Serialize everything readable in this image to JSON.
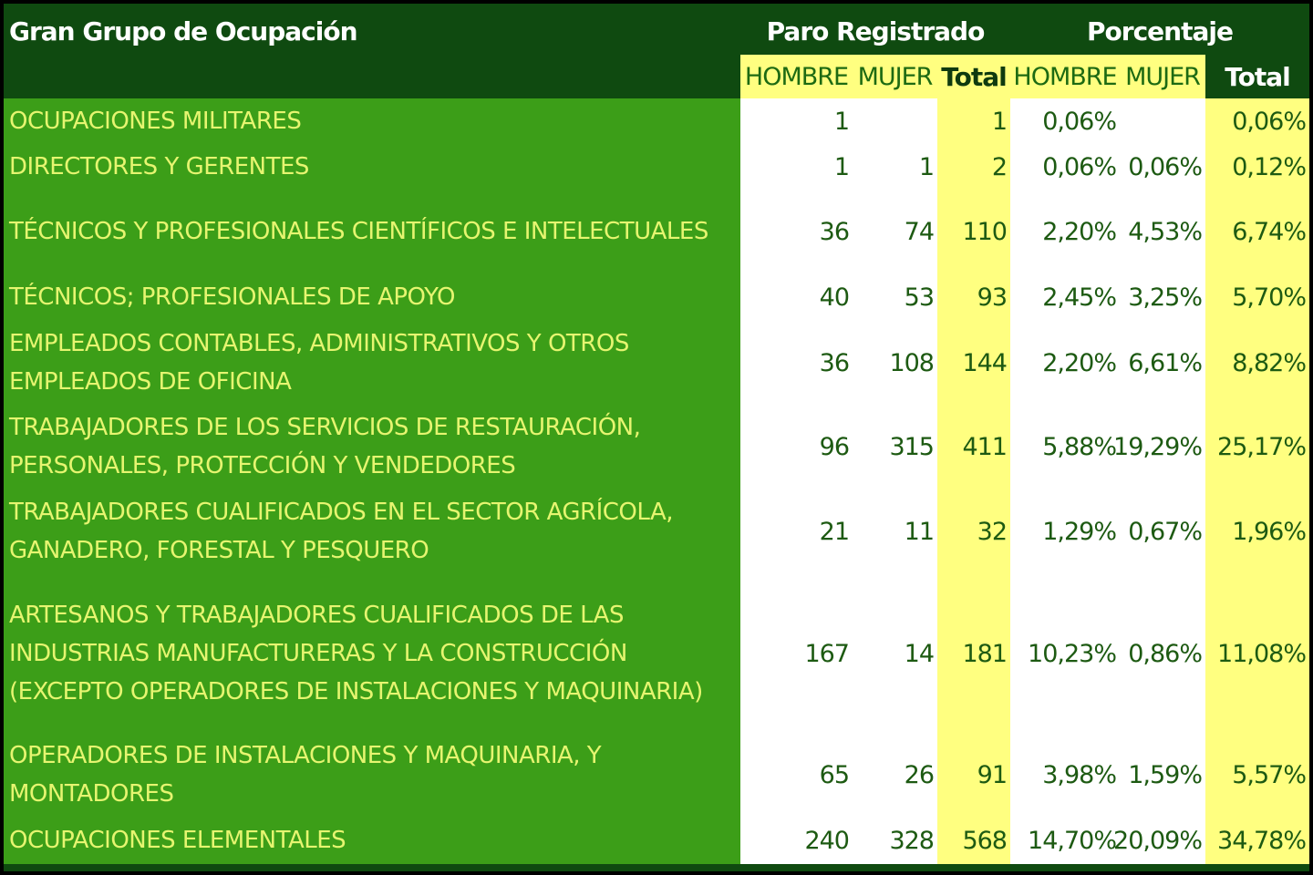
{
  "header": {
    "title": "Gran Grupo de Ocupación",
    "groups": [
      "Paro Registrado",
      "Porcentaje"
    ],
    "columns": [
      "HOMBRE",
      "MUJER",
      "Total",
      "HOMBRE",
      "MUJER",
      "Total"
    ]
  },
  "table": {
    "rows": [
      {
        "label": "OCUPACIONES MILITARES",
        "cells": [
          1,
          null,
          1,
          "0,06%",
          null,
          "0,06%"
        ]
      },
      {
        "label": "DIRECTORES Y GERENTES",
        "cells": [
          1,
          1,
          2,
          "0,06%",
          "0,06%",
          "0,12%"
        ]
      },
      {
        "label": "TÉCNICOS Y PROFESIONALES CIENTÍFICOS E INTELECTUALES",
        "cells": [
          36,
          74,
          110,
          "2,20%",
          "4,53%",
          "6,74%"
        ]
      },
      {
        "label": "TÉCNICOS; PROFESIONALES DE APOYO",
        "cells": [
          40,
          53,
          93,
          "2,45%",
          "3,25%",
          "5,70%"
        ]
      },
      {
        "label": "EMPLEADOS CONTABLES, ADMINISTRATIVOS Y OTROS EMPLEADOS DE OFICINA",
        "cells": [
          36,
          108,
          144,
          "2,20%",
          "6,61%",
          "8,82%"
        ]
      },
      {
        "label": "TRABAJADORES DE LOS SERVICIOS DE RESTAURACIÓN, PERSONALES, PROTECCIÓN Y VENDEDORES",
        "cells": [
          96,
          315,
          411,
          "5,88%",
          "19,29%",
          "25,17%"
        ]
      },
      {
        "label": "TRABAJADORES CUALIFICADOS EN EL SECTOR AGRÍCOLA, GANADERO, FORESTAL Y PESQUERO",
        "cells": [
          21,
          11,
          32,
          "1,29%",
          "0,67%",
          "1,96%"
        ]
      },
      {
        "label": "ARTESANOS Y TRABAJADORES CUALIFICADOS DE LAS INDUSTRIAS MANUFACTURERAS Y LA CONSTRUCCIÓN (EXCEPTO OPERADORES DE INSTALACIONES Y MAQUINARIA)",
        "cells": [
          167,
          14,
          181,
          "10,23%",
          "0,86%",
          "11,08%"
        ]
      },
      {
        "label": "OPERADORES DE INSTALACIONES Y MAQUINARIA, Y MONTADORES",
        "cells": [
          65,
          26,
          91,
          "3,98%",
          "1,59%",
          "5,57%"
        ]
      },
      {
        "label": "OCUPACIONES ELEMENTALES",
        "cells": [
          240,
          328,
          568,
          "14,70%",
          "20,09%",
          "34,78%"
        ]
      }
    ]
  }
}
